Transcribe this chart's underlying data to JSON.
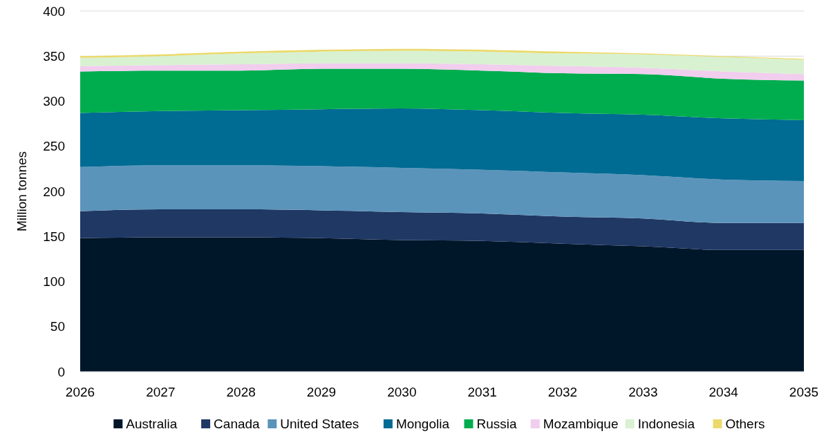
{
  "chart_data": {
    "type": "area",
    "stacked": true,
    "ylabel": "Million tonnes",
    "x": [
      2026,
      2027,
      2028,
      2029,
      2030,
      2031,
      2032,
      2033,
      2034,
      2035
    ],
    "xlim": [
      2026,
      2035
    ],
    "xticks": [
      2026,
      2027,
      2028,
      2029,
      2030,
      2031,
      2032,
      2033,
      2034,
      2035
    ],
    "ylim": [
      0,
      400
    ],
    "yticks": [
      0,
      50,
      100,
      150,
      200,
      250,
      300,
      350,
      400
    ],
    "grid": "y",
    "legend": "bottom",
    "series": [
      {
        "name": "Australia",
        "color": "#001629",
        "values": [
          148,
          149,
          149,
          148,
          146,
          145,
          142,
          139,
          135,
          135
        ]
      },
      {
        "name": "Canada",
        "color": "#203864",
        "values": [
          30,
          31,
          31,
          31,
          31,
          30.5,
          30,
          31,
          30,
          30
        ]
      },
      {
        "name": "United States",
        "color": "#5b94bb",
        "values": [
          49,
          49,
          49,
          49,
          49,
          48.5,
          49,
          48,
          48,
          46.5
        ]
      },
      {
        "name": "Mongolia",
        "color": "#006b93",
        "values": [
          60,
          60,
          61,
          63,
          66,
          66,
          66,
          67,
          68,
          67.5
        ]
      },
      {
        "name": "Russia",
        "color": "#00ad4e",
        "values": [
          46,
          45,
          44,
          45,
          44,
          44,
          44,
          45,
          44,
          44
        ]
      },
      {
        "name": "Mozambique",
        "color": "#f1cdee",
        "values": [
          6,
          6,
          7,
          6,
          6,
          7,
          8,
          7,
          8,
          7
        ]
      },
      {
        "name": "Indonesia",
        "color": "#d8f1d1",
        "values": [
          9,
          10,
          12,
          13,
          14,
          14,
          14,
          15,
          16,
          16
        ]
      },
      {
        "name": "Others",
        "color": "#ebd96a",
        "values": [
          2,
          2,
          2,
          2,
          2,
          2,
          2,
          1,
          1,
          1
        ]
      }
    ]
  }
}
